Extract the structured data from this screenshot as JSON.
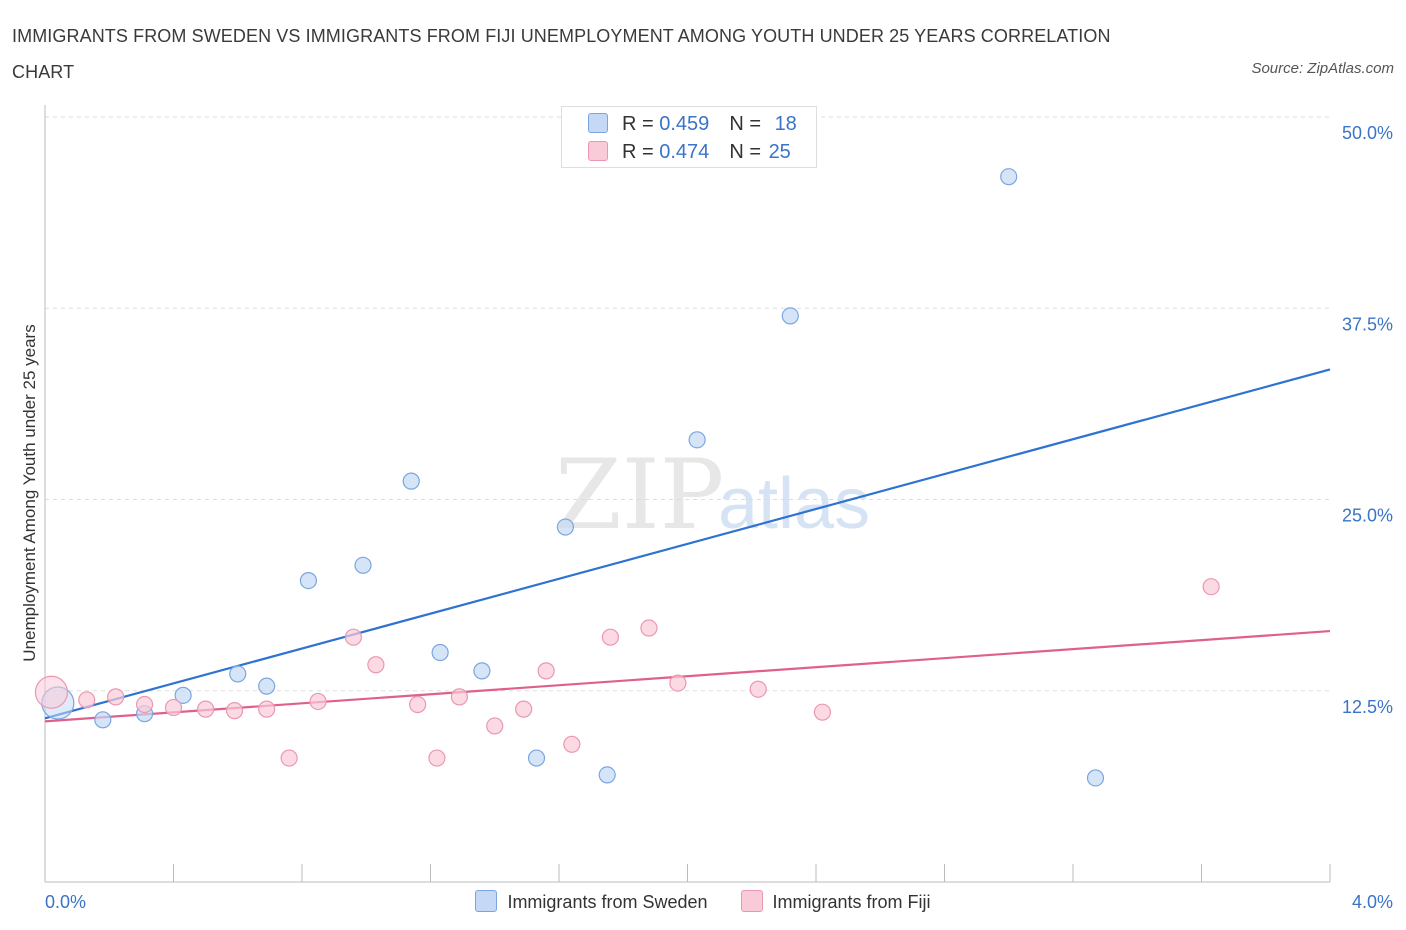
{
  "header": {
    "title": "IMMIGRANTS FROM SWEDEN VS IMMIGRANTS FROM FIJI UNEMPLOYMENT AMONG YOUTH UNDER 25 YEARS CORRELATION CHART",
    "source": "Source: ZipAtlas.com"
  },
  "watermark": {
    "zip": "ZIP",
    "atlas": "atlas"
  },
  "legend_top": {
    "rows": [
      {
        "r_label": "R = ",
        "r_value": "0.459",
        "n_label": "N = ",
        "n_value": "18"
      },
      {
        "r_label": "R = ",
        "r_value": "0.474",
        "n_label": "N = ",
        "n_value": "25"
      }
    ]
  },
  "colors": {
    "sweden_fill": "#c5d8f5",
    "sweden_stroke": "#7aa6e0",
    "sweden_line": "#2f73d0",
    "fiji_fill": "#f9cbd8",
    "fiji_stroke": "#eb97b2",
    "fiji_line": "#e0608c",
    "tick_label": "#3a74c8",
    "grid": "#dddddd"
  },
  "chart_data": {
    "type": "scatter",
    "title": "IMMIGRANTS FROM SWEDEN VS IMMIGRANTS FROM FIJI UNEMPLOYMENT AMONG YOUTH UNDER 25 YEARS CORRELATION CHART",
    "xlabel": "",
    "ylabel": "Unemployment Among Youth under 25 years",
    "xlim": [
      0,
      4.0
    ],
    "ylim": [
      0,
      50.0
    ],
    "x_tick_labels": [
      "0.0%",
      "4.0%"
    ],
    "y_tick_values": [
      12.5,
      25.0,
      37.5,
      50.0
    ],
    "y_tick_labels": [
      "12.5%",
      "25.0%",
      "37.5%",
      "50.0%"
    ],
    "grid": "horizontal dashed",
    "legend_position": "bottom",
    "series": [
      {
        "name": "Immigrants from Sweden",
        "R": 0.459,
        "N": 18,
        "trend": {
          "x": [
            0.0,
            4.0
          ],
          "y": [
            10.7,
            33.5
          ]
        },
        "points": [
          {
            "x": 0.04,
            "y": 11.7,
            "big": true
          },
          {
            "x": 0.18,
            "y": 10.6
          },
          {
            "x": 0.31,
            "y": 11.0
          },
          {
            "x": 0.43,
            "y": 12.2
          },
          {
            "x": 0.6,
            "y": 13.6
          },
          {
            "x": 0.69,
            "y": 12.8
          },
          {
            "x": 0.82,
            "y": 19.7
          },
          {
            "x": 0.99,
            "y": 20.7
          },
          {
            "x": 1.14,
            "y": 26.2
          },
          {
            "x": 1.23,
            "y": 15.0
          },
          {
            "x": 1.36,
            "y": 13.8
          },
          {
            "x": 1.53,
            "y": 8.1
          },
          {
            "x": 1.62,
            "y": 23.2
          },
          {
            "x": 1.75,
            "y": 7.0
          },
          {
            "x": 2.03,
            "y": 28.9
          },
          {
            "x": 2.32,
            "y": 37.0
          },
          {
            "x": 3.0,
            "y": 46.1
          },
          {
            "x": 3.27,
            "y": 6.8
          }
        ]
      },
      {
        "name": "Immigrants from Fiji",
        "R": 0.474,
        "N": 25,
        "trend": {
          "x": [
            0.0,
            4.0
          ],
          "y": [
            10.5,
            16.4
          ]
        },
        "points": [
          {
            "x": 0.02,
            "y": 12.4,
            "big": true
          },
          {
            "x": 0.13,
            "y": 11.9
          },
          {
            "x": 0.22,
            "y": 12.1
          },
          {
            "x": 0.31,
            "y": 11.6
          },
          {
            "x": 0.4,
            "y": 11.4
          },
          {
            "x": 0.5,
            "y": 11.3
          },
          {
            "x": 0.59,
            "y": 11.2
          },
          {
            "x": 0.69,
            "y": 11.3
          },
          {
            "x": 0.76,
            "y": 8.1
          },
          {
            "x": 0.85,
            "y": 11.8
          },
          {
            "x": 0.96,
            "y": 16.0
          },
          {
            "x": 1.03,
            "y": 14.2
          },
          {
            "x": 1.16,
            "y": 11.6
          },
          {
            "x": 1.22,
            "y": 8.1
          },
          {
            "x": 1.29,
            "y": 12.1
          },
          {
            "x": 1.4,
            "y": 10.2
          },
          {
            "x": 1.49,
            "y": 11.3
          },
          {
            "x": 1.56,
            "y": 13.8
          },
          {
            "x": 1.64,
            "y": 9.0
          },
          {
            "x": 1.76,
            "y": 16.0
          },
          {
            "x": 1.88,
            "y": 16.6
          },
          {
            "x": 1.97,
            "y": 13.0
          },
          {
            "x": 2.22,
            "y": 12.6
          },
          {
            "x": 2.42,
            "y": 11.1
          },
          {
            "x": 3.63,
            "y": 19.3
          }
        ]
      }
    ]
  }
}
